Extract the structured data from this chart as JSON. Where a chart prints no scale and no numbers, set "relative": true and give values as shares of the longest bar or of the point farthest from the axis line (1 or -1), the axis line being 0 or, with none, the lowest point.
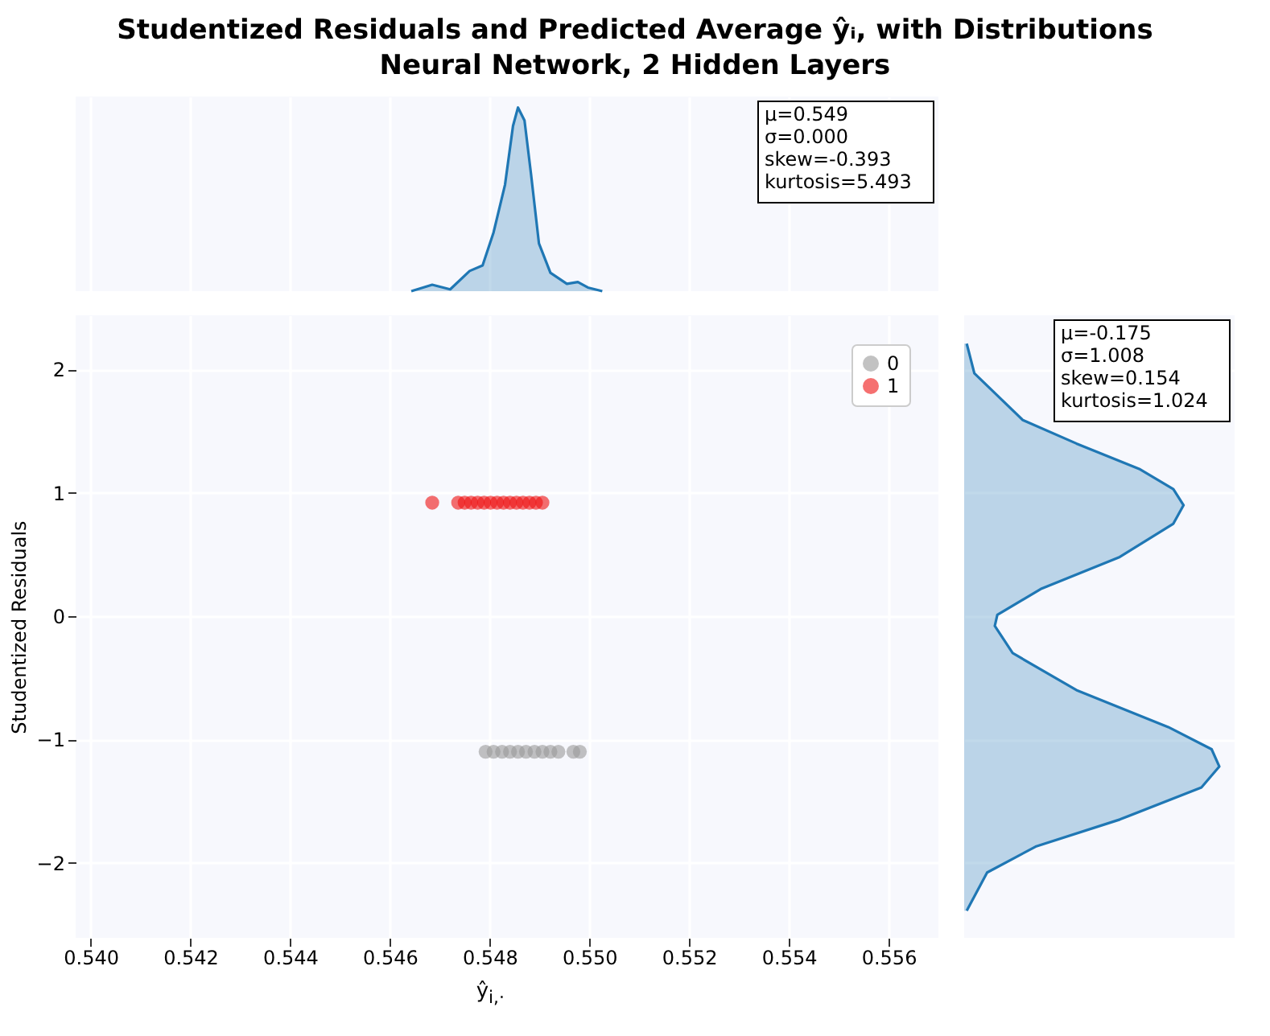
{
  "chart_data": [
    {
      "type": "area",
      "title": "Studentized Residuals and Predicted Average ŷᵢ, with Distributions",
      "subtitle": "Neural Network, 2 Hidden Layers",
      "relative": true,
      "tick_labels": false,
      "grid": "x",
      "xlim": [
        0.5397,
        0.557
      ],
      "xticks": [
        0.54,
        0.542,
        0.544,
        0.546,
        0.548,
        0.55,
        0.552,
        0.554,
        0.556
      ],
      "x": [
        0.54643,
        0.54685,
        0.54721,
        0.5476,
        0.54786,
        0.54808,
        0.54831,
        0.54847,
        0.54857,
        0.5487,
        0.54883,
        0.54899,
        0.54922,
        0.54955,
        0.54977,
        0.54997,
        0.55026
      ],
      "series": [
        {
          "color": "#1f77b4",
          "values": [
            0,
            0.035,
            0.01,
            0.11,
            0.14,
            0.32,
            0.58,
            0.9,
            1,
            0.93,
            0.64,
            0.26,
            0.1,
            0.04,
            0.05,
            0.02,
            0
          ]
        }
      ],
      "annotations": [
        "μ=0.549\nσ=0.000\nskew=-0.393\nkurtosis=5.493"
      ]
    },
    {
      "type": "scatter",
      "xlabel": "ŷ$_{i,·}$",
      "ylabel": "Studentized Residuals",
      "grid": true,
      "legend": "top right",
      "marker": "circle",
      "xlim": [
        0.5397,
        0.557
      ],
      "ylim": [
        -2.61,
        2.44
      ],
      "xticks": [
        {
          "value": 0.54,
          "label": "0.540"
        },
        {
          "value": 0.542,
          "label": "0.542"
        },
        {
          "value": 0.544,
          "label": "0.544"
        },
        {
          "value": 0.546,
          "label": "0.546"
        },
        {
          "value": 0.548,
          "label": "0.548"
        },
        {
          "value": 0.55,
          "label": "0.550"
        },
        {
          "value": 0.552,
          "label": "0.552"
        },
        {
          "value": 0.554,
          "label": "0.554"
        },
        {
          "value": 0.556,
          "label": "0.556"
        }
      ],
      "yticks": [
        {
          "value": -2,
          "label": "−2"
        },
        {
          "value": -1,
          "label": "−1"
        },
        0,
        1,
        2
      ],
      "series": [
        {
          "name": "0",
          "color": "#999999",
          "x": [
            0.54792,
            0.54808,
            0.54825,
            0.54841,
            0.54857,
            0.54873,
            0.5489,
            0.54906,
            0.54922,
            0.54938,
            0.54968,
            0.54981
          ],
          "values": [
            -1.1,
            -1.1,
            -1.1,
            -1.1,
            -1.1,
            -1.1,
            -1.1,
            -1.1,
            -1.1,
            -1.1,
            -1.1,
            -1.1
          ]
        },
        {
          "name": "1",
          "color": "#ee1111",
          "x": [
            0.54685,
            0.54737,
            0.5475,
            0.54763,
            0.54776,
            0.54789,
            0.54802,
            0.54815,
            0.54828,
            0.54841,
            0.54854,
            0.54867,
            0.5488,
            0.54893,
            0.54906
          ],
          "values": [
            0.92,
            0.92,
            0.92,
            0.92,
            0.92,
            0.92,
            0.92,
            0.92,
            0.92,
            0.92,
            0.92,
            0.92,
            0.92,
            0.92,
            0.92
          ]
        }
      ]
    },
    {
      "type": "area",
      "orientation": "horizontal",
      "relative": true,
      "tick_labels": false,
      "grid": "y",
      "ylim": [
        -2.61,
        2.44
      ],
      "yticks": [
        -2,
        -1,
        0,
        1,
        2
      ],
      "x": [
        2.21,
        1.97,
        1.59,
        1.4,
        1.19,
        1.03,
        0.9,
        0.75,
        0.48,
        0.22,
        0.01,
        -0.08,
        -0.3,
        -0.6,
        -0.9,
        -1.08,
        -1.22,
        -1.39,
        -1.65,
        -1.87,
        -2.08,
        -2.39
      ],
      "series": [
        {
          "color": "#1f77b4",
          "values": [
            0.01,
            0.04,
            0.23,
            0.44,
            0.69,
            0.82,
            0.86,
            0.82,
            0.61,
            0.3,
            0.13,
            0.12,
            0.19,
            0.44,
            0.8,
            0.97,
            1,
            0.93,
            0.61,
            0.28,
            0.09,
            0.01
          ]
        }
      ],
      "annotations": [
        "μ=-0.175\nσ=1.008\nskew=0.154\nkurtosis=1.024"
      ]
    }
  ]
}
